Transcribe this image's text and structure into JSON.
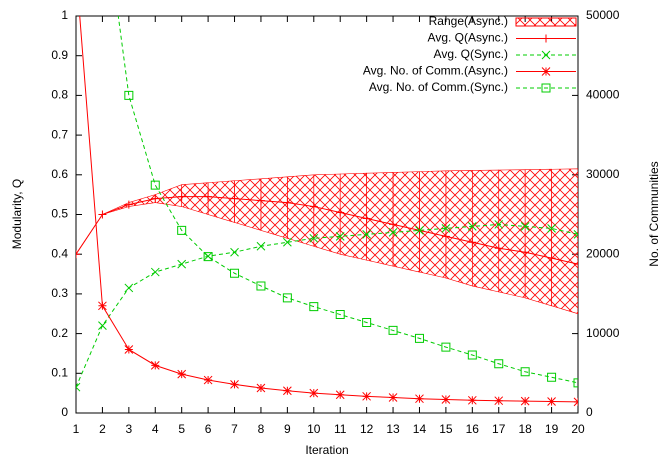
{
  "chart_data": {
    "type": "line",
    "x_label": "Iteration",
    "y_label": "Modularity, Q",
    "y2_label": "No. of Communities",
    "x": [
      1,
      2,
      3,
      4,
      5,
      6,
      7,
      8,
      9,
      10,
      11,
      12,
      13,
      14,
      15,
      16,
      17,
      18,
      19,
      20
    ],
    "xlim": [
      1,
      20
    ],
    "xticks": [
      1,
      2,
      3,
      4,
      5,
      6,
      7,
      8,
      9,
      10,
      11,
      12,
      13,
      14,
      15,
      16,
      17,
      18,
      19,
      20
    ],
    "ylim": [
      0,
      1
    ],
    "yticks": [
      0,
      0.1,
      0.2,
      0.3,
      0.4,
      0.5,
      0.6,
      0.7,
      0.8,
      0.9,
      1
    ],
    "y2lim": [
      0,
      50000
    ],
    "y2ticks": [
      0,
      10000,
      20000,
      30000,
      40000,
      50000
    ],
    "legend": "top-right",
    "series": [
      {
        "name": "Range(Async.)",
        "kind": "range",
        "color": "#ff0000",
        "low": [
          0.4,
          0.5,
          0.52,
          0.53,
          0.52,
          0.5,
          0.48,
          0.46,
          0.44,
          0.42,
          0.4,
          0.385,
          0.37,
          0.355,
          0.34,
          0.32,
          0.305,
          0.29,
          0.27,
          0.25
        ],
        "high": [
          0.4,
          0.5,
          0.53,
          0.55,
          0.575,
          0.58,
          0.585,
          0.59,
          0.595,
          0.6,
          0.602,
          0.604,
          0.606,
          0.608,
          0.61,
          0.611,
          0.612,
          0.613,
          0.614,
          0.615
        ]
      },
      {
        "name": "Avg. Q(Async.)",
        "color": "#ff0000",
        "marker": "plus",
        "dash": false,
        "values": [
          0.4,
          0.5,
          0.525,
          0.54,
          0.545,
          0.545,
          0.54,
          0.535,
          0.53,
          0.52,
          0.505,
          0.49,
          0.475,
          0.46,
          0.445,
          0.43,
          0.415,
          0.405,
          0.39,
          0.375
        ]
      },
      {
        "name": "Avg. Q(Sync.)",
        "color": "#00cc00",
        "marker": "cross",
        "dash": true,
        "values": [
          0.065,
          0.22,
          0.315,
          0.355,
          0.375,
          0.395,
          0.405,
          0.42,
          0.43,
          0.44,
          0.445,
          0.45,
          0.455,
          0.46,
          0.465,
          0.47,
          0.475,
          0.47,
          0.465,
          0.45
        ]
      },
      {
        "name": "Avg. No. of Comm.(Async.)",
        "color": "#ff0000",
        "marker": "star",
        "dash": false,
        "axis": "y2",
        "values": [
          56000,
          13500,
          8000,
          6000,
          4900,
          4150,
          3600,
          3150,
          2800,
          2500,
          2300,
          2100,
          1950,
          1800,
          1700,
          1600,
          1550,
          1500,
          1450,
          1400
        ]
      },
      {
        "name": "Avg. No. of Comm.(Sync.)",
        "color": "#00cc00",
        "marker": "square",
        "dash": true,
        "axis": "y2",
        "values": [
          null,
          65000,
          40000,
          28700,
          23000,
          19700,
          17600,
          16000,
          14500,
          13400,
          12400,
          11400,
          10400,
          9400,
          8300,
          7300,
          6200,
          5200,
          4500,
          3800
        ]
      }
    ]
  }
}
